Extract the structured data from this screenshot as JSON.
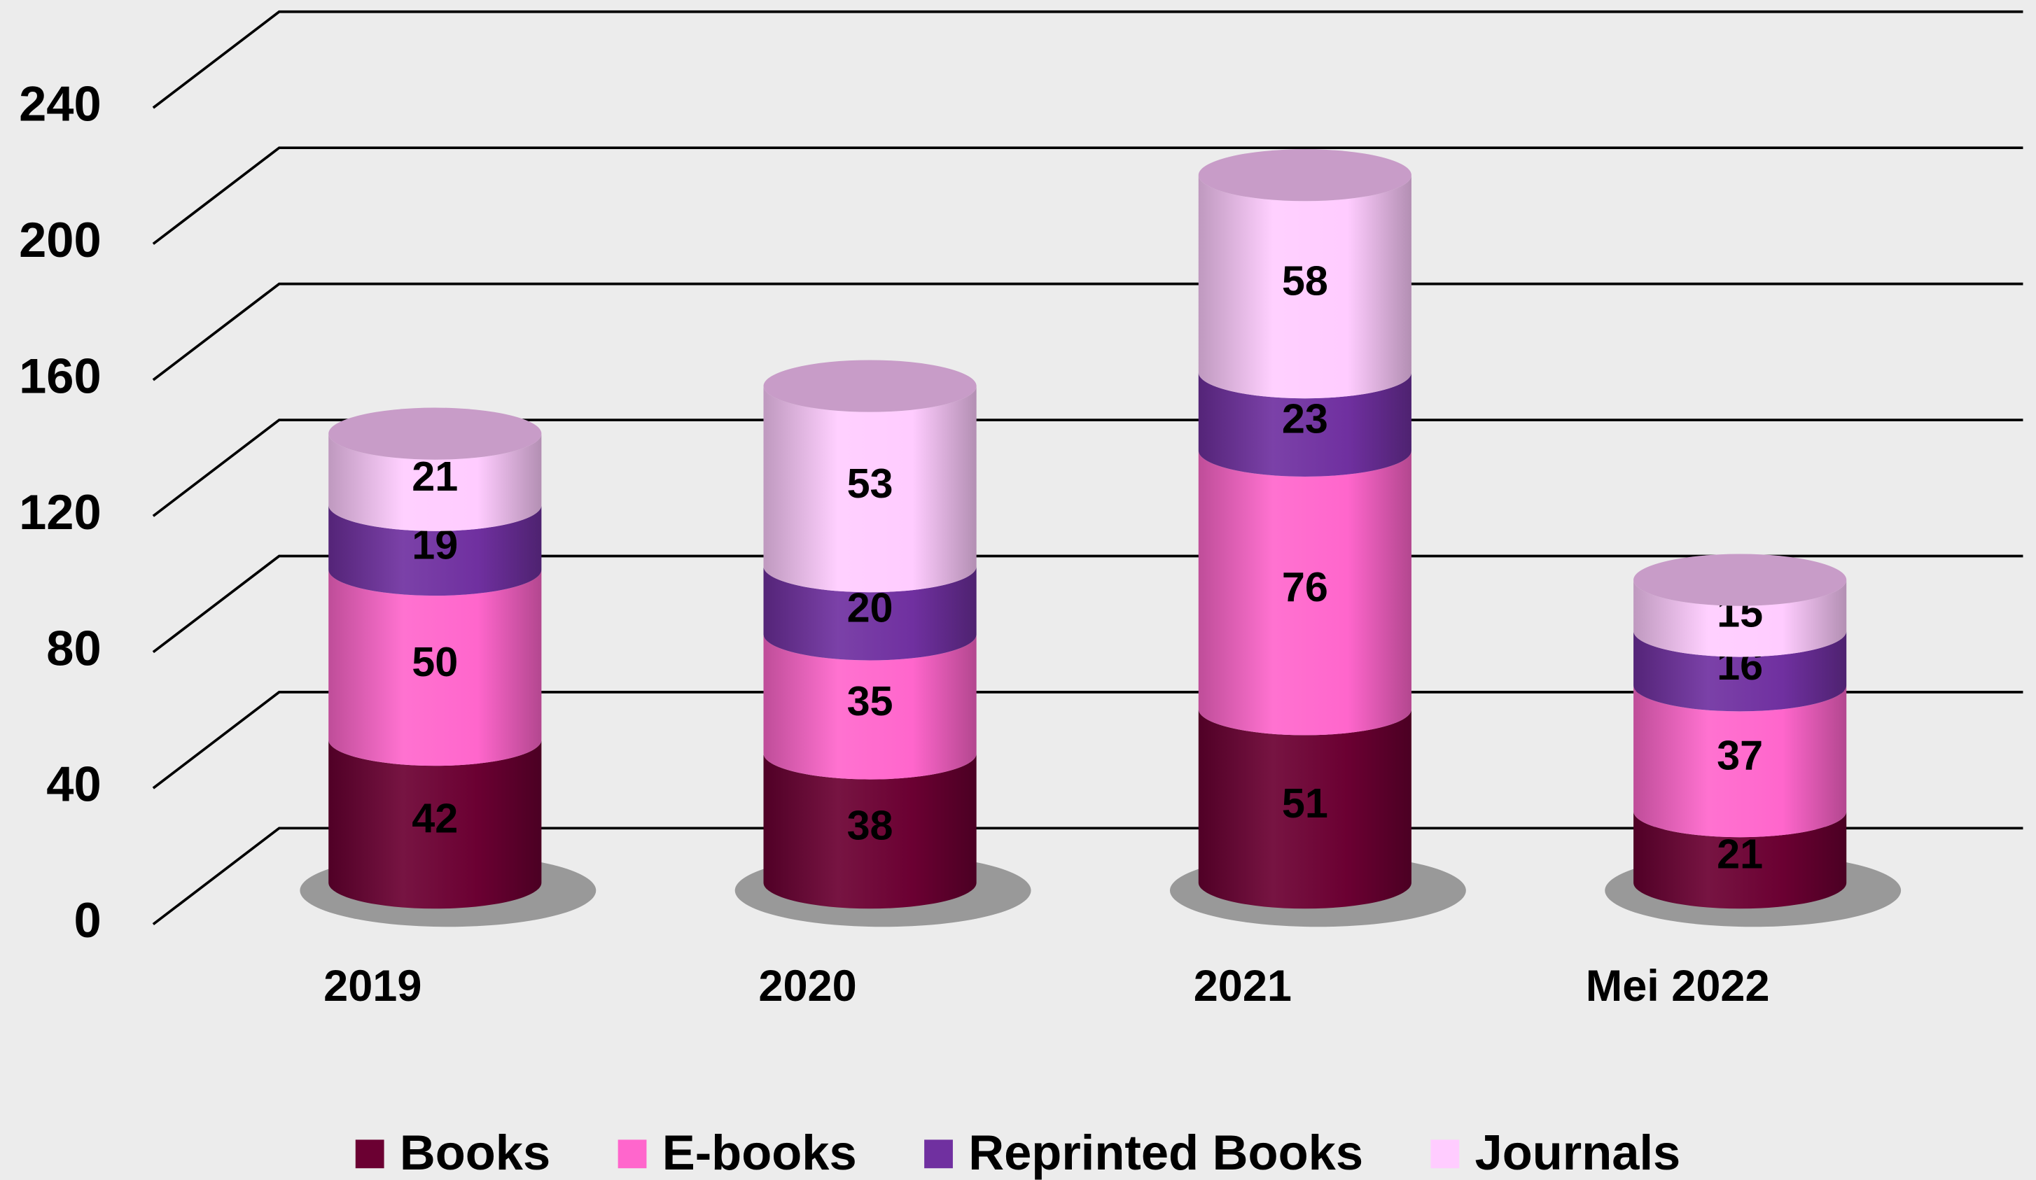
{
  "chart_data": {
    "type": "bar3d_stacked_cylinder",
    "categories": [
      "2019",
      "2020",
      "2021",
      "Mei 2022"
    ],
    "series": [
      {
        "name": "Books",
        "color": "#6b0032",
        "values": [
          42,
          38,
          51,
          21
        ]
      },
      {
        "name": "E-books",
        "color": "#ff66cc",
        "values": [
          50,
          35,
          76,
          37
        ]
      },
      {
        "name": "Reprinted Books",
        "color": "#7030a0",
        "values": [
          19,
          20,
          23,
          16
        ]
      },
      {
        "name": "Journals",
        "color": "#ffccff",
        "values": [
          21,
          53,
          58,
          15
        ]
      }
    ],
    "ylim": [
      0,
      240
    ],
    "yticks": [
      0,
      40,
      80,
      120,
      160,
      200,
      240
    ],
    "grid": true,
    "legend": "bottom"
  }
}
